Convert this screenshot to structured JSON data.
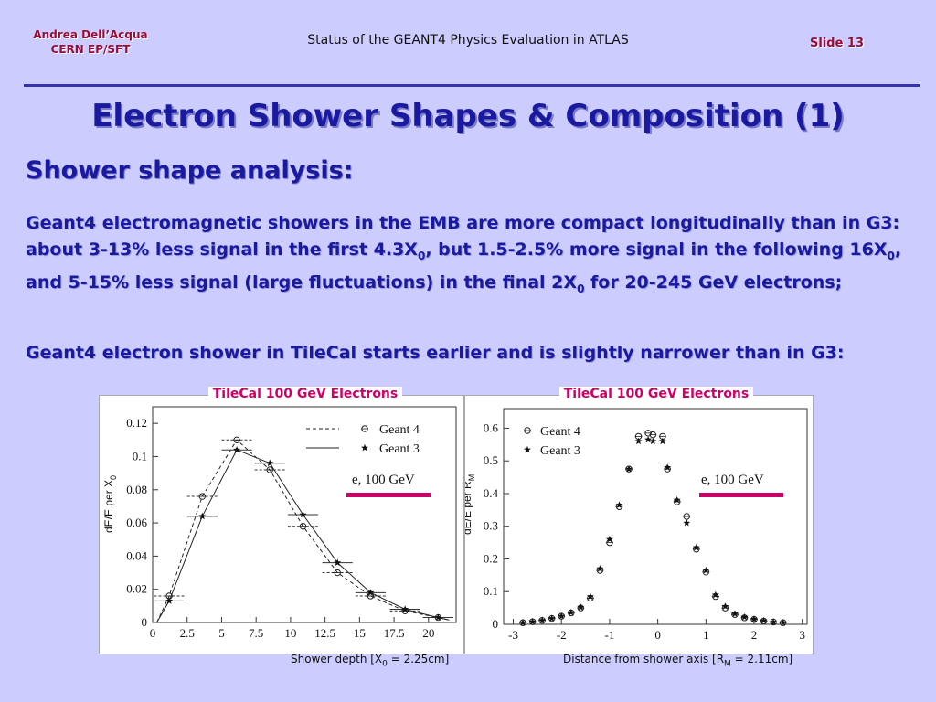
{
  "header": {
    "author_line1": "Andrea Dell’Acqua",
    "author_line2": "CERN EP/SFT",
    "title": "Status of the GEANT4 Physics Evaluation in ATLAS",
    "slide": "Slide 13"
  },
  "main_title": "Electron Shower Shapes & Composition (1)",
  "subtitle": "Shower shape analysis:",
  "para1": {
    "t1": "Geant4 electromagnetic showers in the EMB are more compact longitudinally than in G3: about 3-13% less signal in the first 4.3X",
    "s1": "0",
    "t2": ", but 1.5-2.5% more signal in the following 16X",
    "s2": "0",
    "t3": ", and 5-15% less signal (large fluctuations) in the final 2X",
    "s3": "0",
    "t4": " for 20-245 GeV electrons;"
  },
  "para2": "Geant4 electron shower in TileCal starts earlier and is slightly narrower than in G3:",
  "colors": {
    "accent": "#cc0066",
    "title_blue": "#1a1aa0"
  },
  "chart_data": [
    {
      "type": "scatter",
      "title": "TileCal 100 GeV Electrons",
      "ylabel_main": "dE/E per X",
      "ylabel_sub": "0",
      "xlabel_main": "Shower depth [X",
      "xlabel_sub": "0",
      "xlabel_tail": " = 2.25cm]",
      "xlim": [
        0,
        22
      ],
      "ylim": [
        0,
        0.13
      ],
      "xticks": [
        "0",
        "2.5",
        "5",
        "7.5",
        "10",
        "12.5",
        "15",
        "17.5",
        "20"
      ],
      "yticks": [
        "0",
        "0.02",
        "0.04",
        "0.06",
        "0.08",
        "0.1",
        "0.12"
      ],
      "annotation": "e, 100 GeV",
      "series": [
        {
          "name": "Geant 4",
          "x": [
            1.2,
            3.6,
            6.1,
            8.5,
            10.9,
            13.4,
            15.8,
            18.3,
            20.7
          ],
          "y": [
            0.016,
            0.076,
            0.11,
            0.092,
            0.058,
            0.03,
            0.016,
            0.007,
            0.003
          ]
        },
        {
          "name": "Geant 3",
          "x": [
            1.2,
            3.6,
            6.1,
            8.5,
            10.9,
            13.4,
            15.8,
            18.3,
            20.7
          ],
          "y": [
            0.013,
            0.064,
            0.104,
            0.096,
            0.065,
            0.036,
            0.018,
            0.008,
            0.003
          ]
        }
      ]
    },
    {
      "type": "scatter",
      "title": "TileCal 100 GeV Electrons",
      "ylabel_main": "dE/E per R",
      "ylabel_sub": "M",
      "xlabel_main": "Distance from shower axis [R",
      "xlabel_sub": "M",
      "xlabel_tail": " = 2.11cm]",
      "xlim": [
        -3.2,
        3.1
      ],
      "ylim": [
        0,
        0.66
      ],
      "xticks": [
        "-3",
        "-2",
        "-1",
        "0",
        "1",
        "2",
        "3"
      ],
      "yticks": [
        "0",
        "0.1",
        "0.2",
        "0.3",
        "0.4",
        "0.5",
        "0.6"
      ],
      "annotation": "e, 100 GeV",
      "series": [
        {
          "name": "Geant 4",
          "x": [
            -2.8,
            -2.6,
            -2.4,
            -2.2,
            -2.0,
            -1.8,
            -1.6,
            -1.4,
            -1.2,
            -1.0,
            -0.8,
            -0.6,
            -0.4,
            -0.2,
            -0.1,
            0.1,
            0.2,
            0.4,
            0.6,
            0.8,
            1.0,
            1.2,
            1.4,
            1.6,
            1.8,
            2.0,
            2.2,
            2.4,
            2.6
          ],
          "y": [
            0.005,
            0.008,
            0.012,
            0.018,
            0.025,
            0.035,
            0.05,
            0.08,
            0.165,
            0.25,
            0.36,
            0.475,
            0.575,
            0.585,
            0.58,
            0.575,
            0.475,
            0.375,
            0.33,
            0.23,
            0.16,
            0.085,
            0.05,
            0.03,
            0.02,
            0.015,
            0.01,
            0.007,
            0.005
          ]
        },
        {
          "name": "Geant 3",
          "x": [
            -2.8,
            -2.6,
            -2.4,
            -2.2,
            -2.0,
            -1.8,
            -1.6,
            -1.4,
            -1.2,
            -1.0,
            -0.8,
            -0.6,
            -0.4,
            -0.2,
            -0.1,
            0.1,
            0.2,
            0.4,
            0.6,
            0.8,
            1.0,
            1.2,
            1.4,
            1.6,
            1.8,
            2.0,
            2.2,
            2.4,
            2.6
          ],
          "y": [
            0.005,
            0.008,
            0.012,
            0.018,
            0.025,
            0.036,
            0.052,
            0.085,
            0.17,
            0.26,
            0.365,
            0.475,
            0.56,
            0.565,
            0.56,
            0.56,
            0.48,
            0.38,
            0.31,
            0.235,
            0.165,
            0.09,
            0.055,
            0.032,
            0.022,
            0.016,
            0.011,
            0.007,
            0.005
          ]
        }
      ]
    }
  ]
}
